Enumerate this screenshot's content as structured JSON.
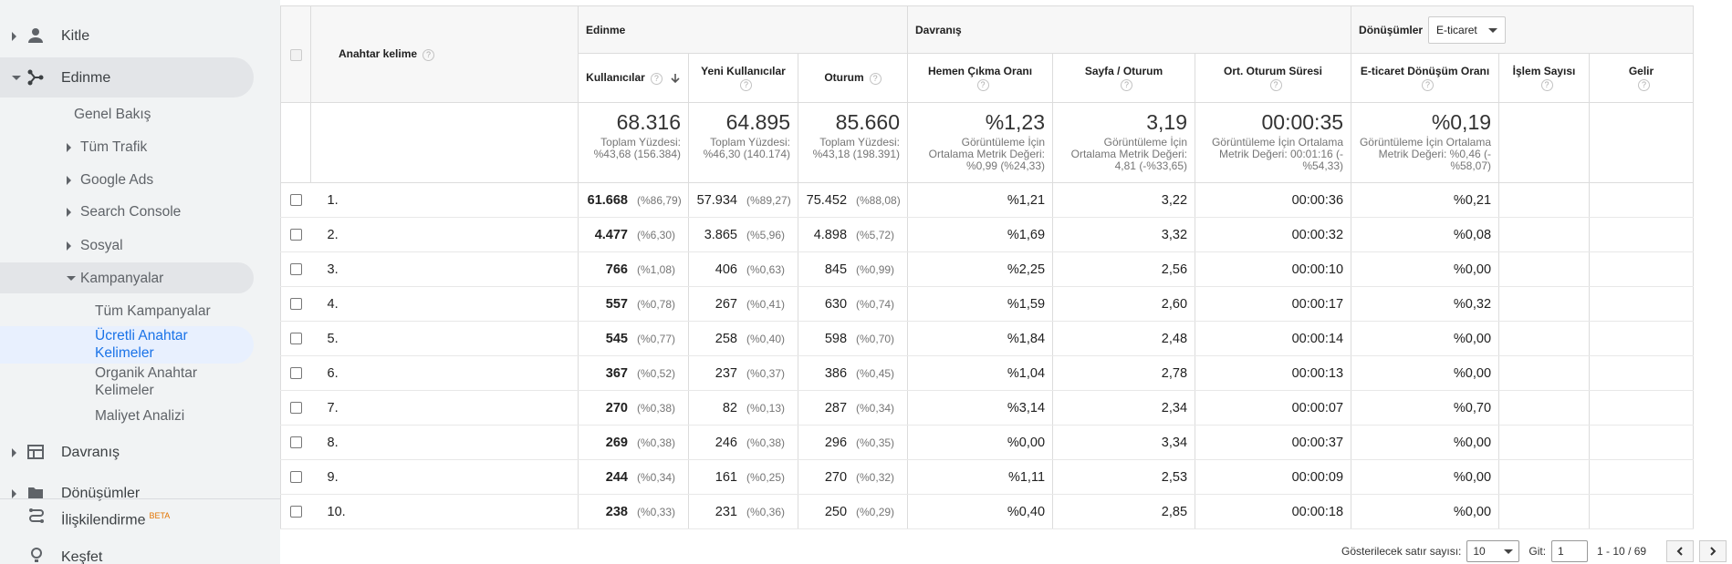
{
  "sidebar": {
    "items": [
      {
        "label": "Kitle"
      },
      {
        "label": "Edinme"
      },
      {
        "label": "Genel Bakış"
      },
      {
        "label": "Tüm Trafik"
      },
      {
        "label": "Google Ads"
      },
      {
        "label": "Search Console"
      },
      {
        "label": "Sosyal"
      },
      {
        "label": "Kampanyalar"
      },
      {
        "label": "Tüm Kampanyalar"
      },
      {
        "label": "Ücretli Anahtar Kelimeler"
      },
      {
        "label": "Organik Anahtar Kelimeler"
      },
      {
        "label": "Maliyet Analizi"
      },
      {
        "label": "Davranış"
      },
      {
        "label": "Dönüşümler"
      }
    ],
    "attribution": "İlişkilendirme",
    "beta": "BETA",
    "discover": "Keşfet"
  },
  "table": {
    "dimension": "Anahtar kelime",
    "groups": [
      "Edinme",
      "Davranış",
      "Dönüşümler"
    ],
    "conversion_select": "E-ticaret",
    "columns": [
      "Kullanıcılar",
      "Yeni Kullanıcılar",
      "Oturum",
      "Hemen Çıkma Oranı",
      "Sayfa / Oturum",
      "Ort. Oturum Süresi",
      "E-ticaret Dönüşüm Oranı",
      "İşlem Sayısı",
      "Gelir"
    ],
    "totals": [
      {
        "value": "68.316",
        "note": "Toplam Yüzdesi: %43,68 (156.384)"
      },
      {
        "value": "64.895",
        "note": "Toplam Yüzdesi: %46,30 (140.174)"
      },
      {
        "value": "85.660",
        "note": "Toplam Yüzdesi: %43,18 (198.391)"
      },
      {
        "value": "%1,23",
        "note": "Görüntüleme İçin Ortalama Metrik Değeri: %0,99 (%24,33)"
      },
      {
        "value": "3,19",
        "note": "Görüntüleme İçin Ortalama Metrik Değeri: 4,81 (-%33,65)"
      },
      {
        "value": "00:00:35",
        "note": "Görüntüleme İçin Ortalama Metrik Değeri: 00:01:16 (-%54,33)"
      },
      {
        "value": "%0,19",
        "note": "Görüntüleme İçin Ortalama Metrik Değeri: %0,46 (-%58,07)"
      }
    ],
    "rows": [
      {
        "no": "1.",
        "cells": [
          [
            "61.668",
            "(%86,79)"
          ],
          [
            "57.934",
            "(%89,27)"
          ],
          [
            "75.452",
            "(%88,08)"
          ],
          "%1,21",
          "3,22",
          "00:00:36",
          "%0,21"
        ]
      },
      {
        "no": "2.",
        "cells": [
          [
            "4.477",
            "(%6,30)"
          ],
          [
            "3.865",
            "(%5,96)"
          ],
          [
            "4.898",
            "(%5,72)"
          ],
          "%1,69",
          "3,32",
          "00:00:32",
          "%0,08"
        ]
      },
      {
        "no": "3.",
        "cells": [
          [
            "766",
            "(%1,08)"
          ],
          [
            "406",
            "(%0,63)"
          ],
          [
            "845",
            "(%0,99)"
          ],
          "%2,25",
          "2,56",
          "00:00:10",
          "%0,00"
        ]
      },
      {
        "no": "4.",
        "cells": [
          [
            "557",
            "(%0,78)"
          ],
          [
            "267",
            "(%0,41)"
          ],
          [
            "630",
            "(%0,74)"
          ],
          "%1,59",
          "2,60",
          "00:00:17",
          "%0,32"
        ]
      },
      {
        "no": "5.",
        "cells": [
          [
            "545",
            "(%0,77)"
          ],
          [
            "258",
            "(%0,40)"
          ],
          [
            "598",
            "(%0,70)"
          ],
          "%1,84",
          "2,48",
          "00:00:14",
          "%0,00"
        ]
      },
      {
        "no": "6.",
        "cells": [
          [
            "367",
            "(%0,52)"
          ],
          [
            "237",
            "(%0,37)"
          ],
          [
            "386",
            "(%0,45)"
          ],
          "%1,04",
          "2,78",
          "00:00:13",
          "%0,00"
        ]
      },
      {
        "no": "7.",
        "cells": [
          [
            "270",
            "(%0,38)"
          ],
          [
            "82",
            "(%0,13)"
          ],
          [
            "287",
            "(%0,34)"
          ],
          "%3,14",
          "2,34",
          "00:00:07",
          "%0,70"
        ]
      },
      {
        "no": "8.",
        "cells": [
          [
            "269",
            "(%0,38)"
          ],
          [
            "246",
            "(%0,38)"
          ],
          [
            "296",
            "(%0,35)"
          ],
          "%0,00",
          "3,34",
          "00:00:37",
          "%0,00"
        ]
      },
      {
        "no": "9.",
        "cells": [
          [
            "244",
            "(%0,34)"
          ],
          [
            "161",
            "(%0,25)"
          ],
          [
            "270",
            "(%0,32)"
          ],
          "%1,11",
          "2,53",
          "00:00:09",
          "%0,00"
        ]
      },
      {
        "no": "10.",
        "cells": [
          [
            "238",
            "(%0,33)"
          ],
          [
            "231",
            "(%0,36)"
          ],
          [
            "250",
            "(%0,29)"
          ],
          "%0,40",
          "2,85",
          "00:00:18",
          "%0,00"
        ]
      }
    ]
  },
  "footer": {
    "rows_label": "Gösterilecek satır sayısı:",
    "rows_value": "10",
    "goto_label": "Git:",
    "goto_value": "1",
    "range": "1 - 10 / 69"
  }
}
